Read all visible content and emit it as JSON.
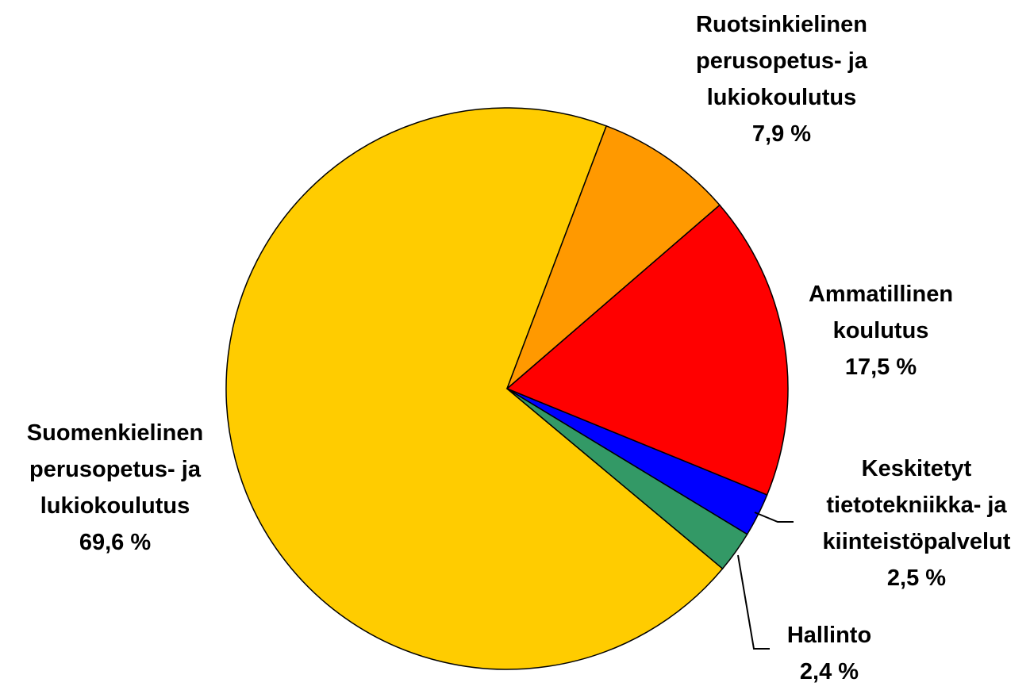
{
  "chart_data": {
    "type": "pie",
    "categories": [
      "Ruotsinkielinen\nperusopetus- ja\nlukiokoulutus",
      "Ammatillinen\nkoulutus",
      "Keskitetyt\ntietotekniikka- ja\nkiinteistöpalvelut",
      "Hallinto",
      "Suomenkielinen\nperusopetus- ja\nlukiokoulutus"
    ],
    "values": [
      7.9,
      17.5,
      2.5,
      2.4,
      69.6
    ],
    "value_labels": [
      "7,9 %",
      "17,5 %",
      "2,5 %",
      "2,4 %",
      "69,6 %"
    ],
    "colors": [
      "#FF9900",
      "#FF0000",
      "#0000FF",
      "#339966",
      "#FFCC00"
    ]
  }
}
